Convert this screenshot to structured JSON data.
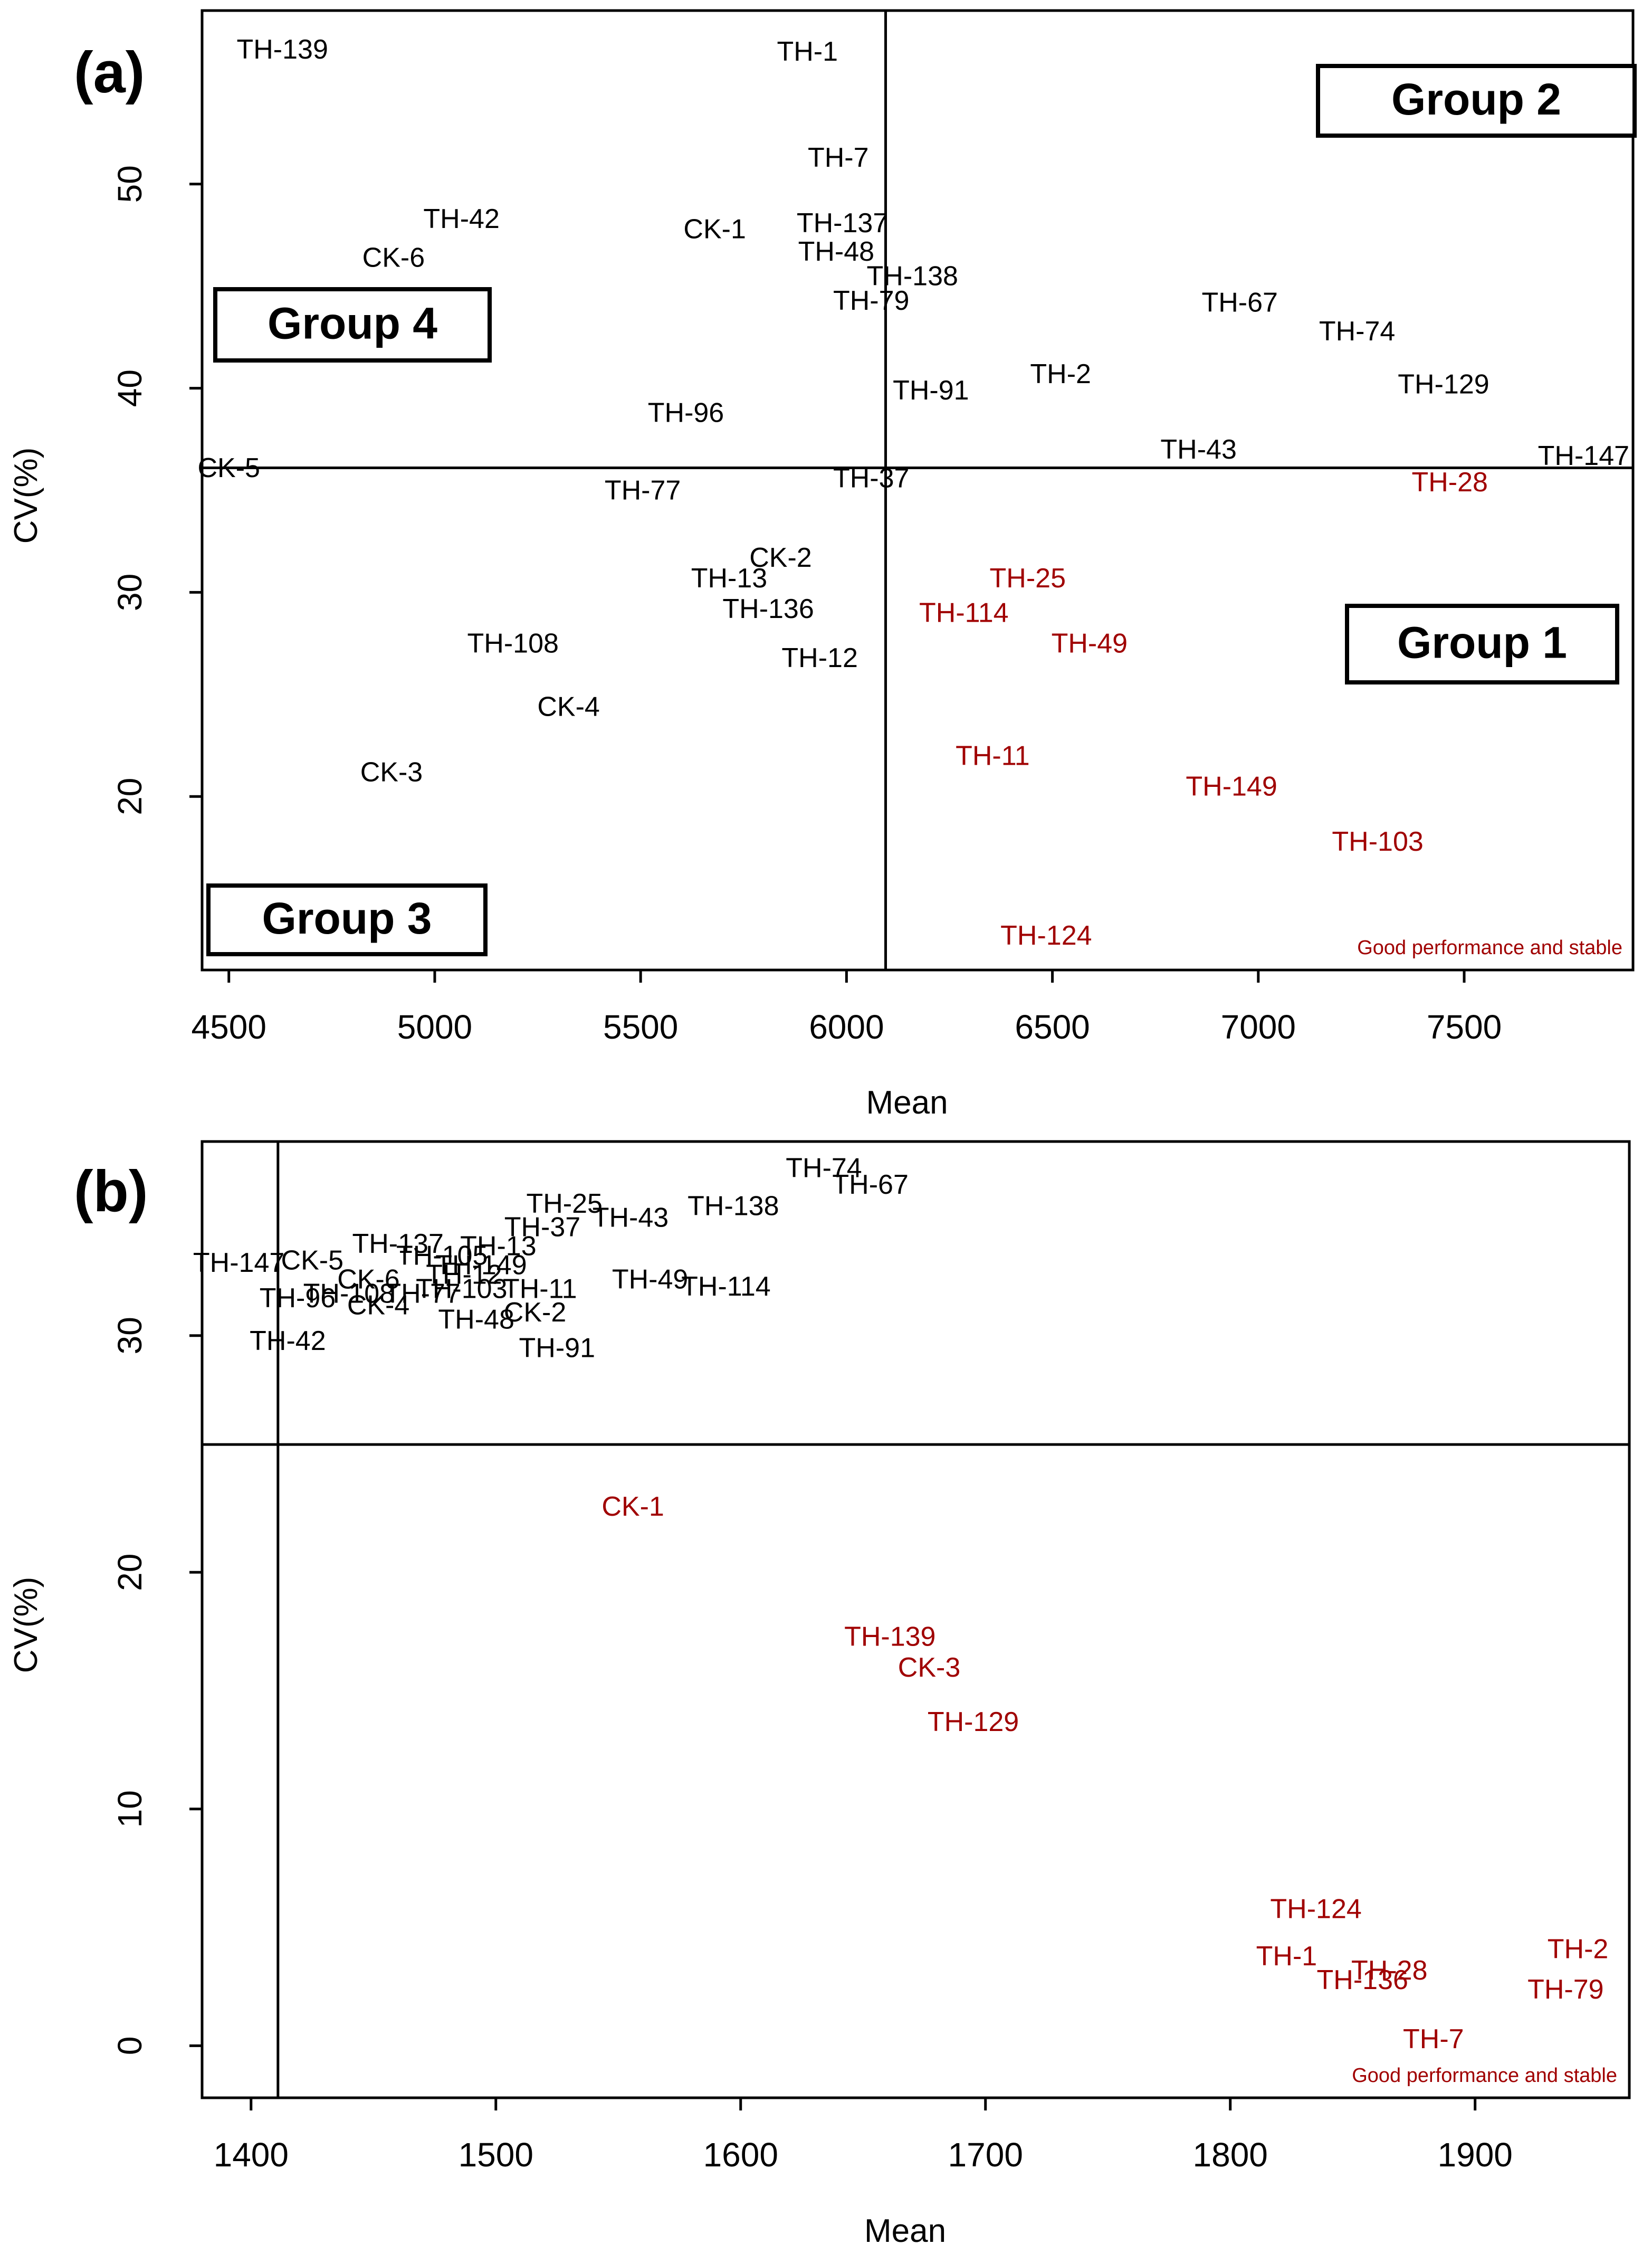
{
  "colors": {
    "stable": "#a00000",
    "other": "#000000"
  },
  "chart_data": [
    {
      "type": "scatter",
      "panel_label": "(a)",
      "xlabel": "Mean",
      "ylabel": "CV(%)",
      "xlim": [
        4435,
        7910
      ],
      "ylim": [
        11.5,
        58.5
      ],
      "xticks": [
        4500,
        5000,
        5500,
        6000,
        6500,
        7000,
        7500
      ],
      "yticks": [
        20,
        30,
        40,
        50
      ],
      "vline": 6095,
      "hline": 36.1,
      "groups": [
        {
          "label": "Group 2",
          "quadrant": "top-right"
        },
        {
          "label": "Group 4",
          "quadrant": "top-left"
        },
        {
          "label": "Group 1",
          "quadrant": "bottom-right"
        },
        {
          "label": "Group 3",
          "quadrant": "bottom-left"
        }
      ],
      "note": "Good performance and stable",
      "points": [
        {
          "label": "TH-139",
          "x": 4630,
          "y": 56.5,
          "stable": false
        },
        {
          "label": "TH-1",
          "x": 5905,
          "y": 56.4,
          "stable": false
        },
        {
          "label": "TH-7",
          "x": 5980,
          "y": 51.2,
          "stable": false
        },
        {
          "label": "TH-42",
          "x": 5065,
          "y": 48.2,
          "stable": false
        },
        {
          "label": "CK-1",
          "x": 5680,
          "y": 47.7,
          "stable": false
        },
        {
          "label": "TH-137",
          "x": 5990,
          "y": 48.0,
          "stable": false
        },
        {
          "label": "CK-6",
          "x": 4900,
          "y": 46.3,
          "stable": false
        },
        {
          "label": "TH-48",
          "x": 5975,
          "y": 46.6,
          "stable": false
        },
        {
          "label": "TH-138",
          "x": 6160,
          "y": 45.4,
          "stable": false
        },
        {
          "label": "TH-79",
          "x": 6060,
          "y": 44.2,
          "stable": false
        },
        {
          "label": "TH-67",
          "x": 6955,
          "y": 44.1,
          "stable": false
        },
        {
          "label": "TH-74",
          "x": 7240,
          "y": 42.7,
          "stable": false
        },
        {
          "label": "TH-2",
          "x": 6520,
          "y": 40.6,
          "stable": false
        },
        {
          "label": "TH-91",
          "x": 6205,
          "y": 39.8,
          "stable": false
        },
        {
          "label": "TH-129",
          "x": 7450,
          "y": 40.1,
          "stable": false
        },
        {
          "label": "TH-96",
          "x": 5610,
          "y": 38.7,
          "stable": false
        },
        {
          "label": "TH-43",
          "x": 6855,
          "y": 36.9,
          "stable": false
        },
        {
          "label": "TH-147",
          "x": 7790,
          "y": 36.6,
          "stable": false
        },
        {
          "label": "CK-5",
          "x": 4500,
          "y": 36.0,
          "stable": false
        },
        {
          "label": "TH-77",
          "x": 5505,
          "y": 34.9,
          "stable": false
        },
        {
          "label": "TH-37",
          "x": 6060,
          "y": 35.5,
          "stable": false
        },
        {
          "label": "TH-28",
          "x": 7465,
          "y": 35.3,
          "stable": true
        },
        {
          "label": "CK-2",
          "x": 5840,
          "y": 31.6,
          "stable": false
        },
        {
          "label": "TH-13",
          "x": 5715,
          "y": 30.6,
          "stable": false
        },
        {
          "label": "TH-25",
          "x": 6440,
          "y": 30.6,
          "stable": true
        },
        {
          "label": "TH-136",
          "x": 5810,
          "y": 29.1,
          "stable": false
        },
        {
          "label": "TH-114",
          "x": 6285,
          "y": 28.9,
          "stable": true
        },
        {
          "label": "TH-108",
          "x": 5190,
          "y": 27.4,
          "stable": false
        },
        {
          "label": "TH-49",
          "x": 6590,
          "y": 27.4,
          "stable": true
        },
        {
          "label": "TH-12",
          "x": 5935,
          "y": 26.7,
          "stable": false
        },
        {
          "label": "CK-4",
          "x": 5325,
          "y": 24.3,
          "stable": false
        },
        {
          "label": "TH-11",
          "x": 6355,
          "y": 21.9,
          "stable": true
        },
        {
          "label": "CK-3",
          "x": 4895,
          "y": 21.1,
          "stable": false
        },
        {
          "label": "TH-149",
          "x": 6935,
          "y": 20.4,
          "stable": true
        },
        {
          "label": "TH-103",
          "x": 7290,
          "y": 17.7,
          "stable": true
        },
        {
          "label": "TH-124",
          "x": 6485,
          "y": 13.1,
          "stable": true
        }
      ]
    },
    {
      "type": "scatter",
      "panel_label": "(b)",
      "xlabel": "Mean",
      "ylabel": "CV(%)",
      "xlim": [
        1380,
        1963
      ],
      "ylim": [
        -2.2,
        38.2
      ],
      "xticks": [
        1400,
        1500,
        1600,
        1700,
        1800,
        1900
      ],
      "yticks": [
        0,
        10,
        20,
        30
      ],
      "vline": 1411,
      "hline": 25.4,
      "note": "Good performance and stable",
      "points": [
        {
          "label": "TH-74",
          "x": 1634,
          "y": 37.0,
          "stable": false
        },
        {
          "label": "TH-67",
          "x": 1653,
          "y": 36.3,
          "stable": false
        },
        {
          "label": "TH-25",
          "x": 1528,
          "y": 35.5,
          "stable": false
        },
        {
          "label": "TH-138",
          "x": 1597,
          "y": 35.4,
          "stable": false
        },
        {
          "label": "TH-43",
          "x": 1555,
          "y": 34.9,
          "stable": false
        },
        {
          "label": "TH-37",
          "x": 1519,
          "y": 34.5,
          "stable": false
        },
        {
          "label": "TH-137",
          "x": 1460,
          "y": 33.8,
          "stable": false
        },
        {
          "label": "TH-13",
          "x": 1501,
          "y": 33.7,
          "stable": false
        },
        {
          "label": "TH-105",
          "x": 1478,
          "y": 33.3,
          "stable": false
        },
        {
          "label": "CK-5",
          "x": 1425,
          "y": 33.1,
          "stable": false
        },
        {
          "label": "TH-147",
          "x": 1395,
          "y": 33.0,
          "stable": false
        },
        {
          "label": "TH-149",
          "x": 1494,
          "y": 32.9,
          "stable": false
        },
        {
          "label": "TH-12",
          "x": 1487,
          "y": 32.5,
          "stable": false
        },
        {
          "label": "TH-49",
          "x": 1563,
          "y": 32.3,
          "stable": false
        },
        {
          "label": "CK-6",
          "x": 1448,
          "y": 32.3,
          "stable": false
        },
        {
          "label": "TH-114",
          "x": 1594,
          "y": 32.0,
          "stable": false
        },
        {
          "label": "TH-11",
          "x": 1518,
          "y": 31.9,
          "stable": false
        },
        {
          "label": "TH-103",
          "x": 1486,
          "y": 31.9,
          "stable": false
        },
        {
          "label": "TH-108",
          "x": 1440,
          "y": 31.7,
          "stable": false
        },
        {
          "label": "TH-77",
          "x": 1470,
          "y": 31.7,
          "stable": false
        },
        {
          "label": "TH-96",
          "x": 1419,
          "y": 31.5,
          "stable": false
        },
        {
          "label": "CK-4",
          "x": 1452,
          "y": 31.2,
          "stable": false
        },
        {
          "label": "CK-2",
          "x": 1516,
          "y": 30.9,
          "stable": false
        },
        {
          "label": "TH-48",
          "x": 1492,
          "y": 30.6,
          "stable": false
        },
        {
          "label": "TH-42",
          "x": 1415,
          "y": 29.7,
          "stable": false
        },
        {
          "label": "TH-91",
          "x": 1525,
          "y": 29.4,
          "stable": false
        },
        {
          "label": "CK-1",
          "x": 1556,
          "y": 22.7,
          "stable": true
        },
        {
          "label": "TH-139",
          "x": 1661,
          "y": 17.2,
          "stable": true
        },
        {
          "label": "CK-3",
          "x": 1677,
          "y": 15.9,
          "stable": true
        },
        {
          "label": "TH-129",
          "x": 1695,
          "y": 13.6,
          "stable": true
        },
        {
          "label": "TH-124",
          "x": 1835,
          "y": 5.7,
          "stable": true
        },
        {
          "label": "TH-1",
          "x": 1823,
          "y": 3.7,
          "stable": true
        },
        {
          "label": "TH-2",
          "x": 1942,
          "y": 4.0,
          "stable": true
        },
        {
          "label": "TH-28",
          "x": 1865,
          "y": 3.1,
          "stable": true
        },
        {
          "label": "TH-136",
          "x": 1854,
          "y": 2.7,
          "stable": true
        },
        {
          "label": "TH-79",
          "x": 1937,
          "y": 2.3,
          "stable": true
        },
        {
          "label": "TH-7",
          "x": 1883,
          "y": 0.2,
          "stable": true
        }
      ]
    }
  ]
}
